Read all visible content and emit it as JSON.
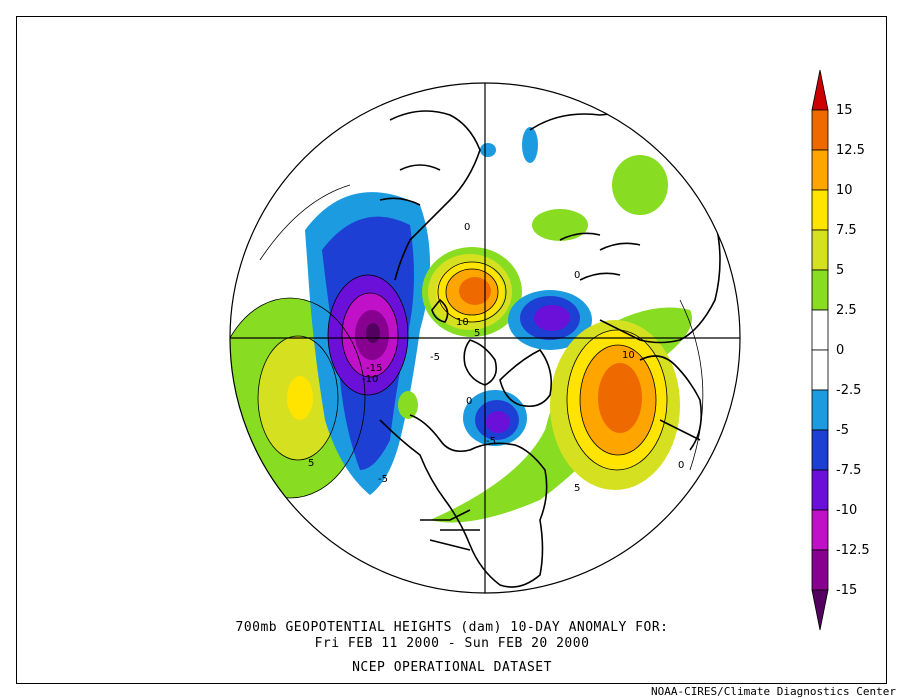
{
  "title": {
    "line1": "700mb GEOPOTENTIAL HEIGHTS (dam)    10-DAY ANOMALY FOR:",
    "line2": "Fri FEB 11 2000 - Sun FEB 20 2000",
    "line3": "NCEP OPERATIONAL DATASET"
  },
  "credit": "NOAA-CIRES/Climate Diagnostics Center",
  "colorbar": {
    "labels": [
      "15",
      "12.5",
      "10",
      "7.5",
      "5",
      "2.5",
      "0",
      "-2.5",
      "-5",
      "-7.5",
      "-10",
      "-12.5",
      "-15"
    ],
    "colors": [
      "#cc0000",
      "#ee6a00",
      "#ffa500",
      "#ffe400",
      "#d4e020",
      "#88dd22",
      "#ffffff",
      "#1c9be0",
      "#1e3fd4",
      "#6a10d8",
      "#c010c8",
      "#880090",
      "#540060"
    ]
  },
  "contour_labels": [
    {
      "text": "10"
    },
    {
      "text": "5"
    },
    {
      "text": "0"
    },
    {
      "text": "-15"
    },
    {
      "text": "-10"
    },
    {
      "text": "-5"
    },
    {
      "text": "10"
    },
    {
      "text": "-5"
    },
    {
      "text": "-5"
    },
    {
      "text": "5"
    },
    {
      "text": "5"
    },
    {
      "text": "0"
    },
    {
      "text": "0"
    },
    {
      "text": "0"
    }
  ]
}
